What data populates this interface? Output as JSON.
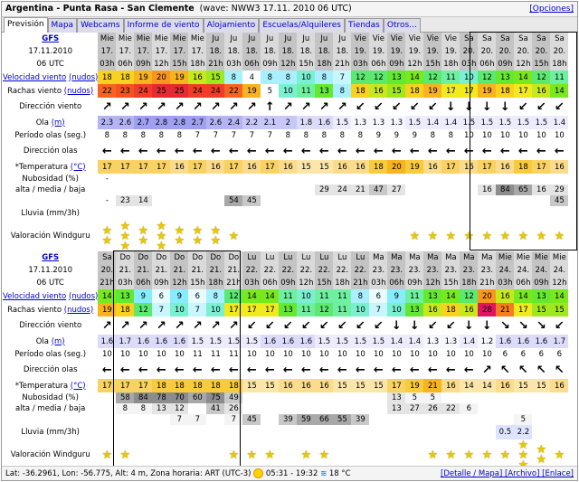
{
  "title": {
    "location": "Argentina - Punta Rasa - San Clemente",
    "meta": "(wave: NWW3 17.11. 2010 06 UTC)",
    "options": "[Opciones]"
  },
  "tabs": [
    "Previsión",
    "Mapa",
    "Webcams",
    "Informe de viento",
    "Alojamiento",
    "Escuelas/Alquileres",
    "Tiendas",
    "Otros..."
  ],
  "labels": {
    "model": "GFS",
    "date": "17.11.2010",
    "utc": "06 UTC",
    "wind": "Velocidad viento",
    "gust": "Rachas viento",
    "units_kn": "(nudos)",
    "wdir": "Dirección viento",
    "wave": "Ola",
    "wave_unit": "(m)",
    "period": "Período olas (seg.)",
    "wvdir": "Dirección olas",
    "temp": "*Temperatura",
    "temp_unit": "(°C)",
    "cloud1": "Nubosidad (%)",
    "cloud2": "alta / media / baja",
    "rain": "Lluvia (mm/3h)",
    "rating": "Valoración Windguru"
  },
  "p1": {
    "days": [
      "Mie",
      "Mie",
      "Mie",
      "Mie",
      "Mie",
      "Mie",
      "Ju",
      "Ju",
      "Ju",
      "Ju",
      "Ju",
      "Ju",
      "Ju",
      "Ju",
      "Vie",
      "Vie",
      "Vie",
      "Vie",
      "Vie",
      "Vie",
      "Sa",
      "Sa",
      "Sa",
      "Sa",
      "Sa",
      "Sa"
    ],
    "dates": [
      "17.",
      "17.",
      "17.",
      "17.",
      "17.",
      "17.",
      "18.",
      "18.",
      "18.",
      "18.",
      "18.",
      "18.",
      "18.",
      "18.",
      "19.",
      "19.",
      "19.",
      "19.",
      "19.",
      "19.",
      "20.",
      "20.",
      "20.",
      "20.",
      "20.",
      "20."
    ],
    "hours": [
      "03h",
      "06h",
      "09h",
      "12h",
      "15h",
      "18h",
      "21h",
      "03h",
      "06h",
      "09h",
      "12h",
      "15h",
      "18h",
      "21h",
      "03h",
      "06h",
      "09h",
      "12h",
      "15h",
      "18h",
      "03h",
      "06h",
      "09h",
      "12h",
      "15h",
      "18h"
    ],
    "wind": [
      "18",
      "18",
      "19",
      "20",
      "19",
      "16",
      "15",
      "8",
      "4",
      "8",
      "8",
      "10",
      "8",
      "7",
      "12",
      "12",
      "13",
      "14",
      "12",
      "11",
      "10",
      "12",
      "13",
      "14",
      "12",
      "11"
    ],
    "gust": [
      "22",
      "23",
      "24",
      "25",
      "25",
      "24",
      "24",
      "22",
      "19",
      "5",
      "10",
      "11",
      "13",
      "8",
      "18",
      "16",
      "15",
      "18",
      "19",
      "17",
      "17",
      "19",
      "18",
      "17",
      "16",
      "14"
    ],
    "wdir": [
      "↗",
      "↗",
      "↗",
      "↗",
      "↗",
      "↗",
      "↗",
      "↗",
      "↗",
      "↑",
      "↗",
      "↗",
      "↗",
      "↗",
      "↙",
      "↙",
      "↙",
      "↙",
      "↙",
      "↓",
      "↓",
      "↓",
      "↓",
      "↙",
      "↙",
      "↙"
    ],
    "wave": [
      "2.3",
      "2.6",
      "2.7",
      "2.8",
      "2.8",
      "2.7",
      "2.6",
      "2.4",
      "2.2",
      "2.1",
      "2",
      "1.8",
      "1.6",
      "1.5",
      "1.3",
      "1.3",
      "1.3",
      "1.5",
      "1.4",
      "1.4",
      "1.5",
      "1.5",
      "1.5",
      "1.5",
      "1.5",
      "1.4"
    ],
    "period": [
      "8",
      "8",
      "8",
      "8",
      "8",
      "7",
      "7",
      "7",
      "7",
      "7",
      "8",
      "8",
      "8",
      "8",
      "8",
      "9",
      "9",
      "9",
      "8",
      "8",
      "10",
      "10",
      "10",
      "10",
      "10",
      "10"
    ],
    "wvdir": [
      "←",
      "←",
      "←",
      "←",
      "←",
      "←",
      "←",
      "←",
      "←",
      "←",
      "←",
      "←",
      "←",
      "←",
      "←",
      "←",
      "←",
      "←",
      "←",
      "←",
      "←",
      "←",
      "←",
      "←",
      "←",
      "←"
    ],
    "temp": [
      "17",
      "17",
      "17",
      "17",
      "16",
      "17",
      "16",
      "17",
      "16",
      "17",
      "16",
      "15",
      "15",
      "16",
      "16",
      "18",
      "20",
      "19",
      "16",
      "17",
      "16",
      "17",
      "16",
      "18",
      "17",
      "16"
    ],
    "cloud_high": [
      "-",
      "",
      "",
      "",
      "",
      "",
      "",
      "",
      "",
      "",
      "",
      "",
      "",
      "",
      "",
      "",
      "",
      "",
      "",
      "",
      "",
      "",
      "",
      "",
      "",
      ""
    ],
    "cloud_mid": [
      "",
      "",
      "",
      "",
      "",
      "",
      "",
      "",
      "",
      "",
      "",
      "",
      "29",
      "24",
      "21",
      "47",
      "27",
      "",
      "",
      "",
      "",
      "16",
      "84",
      "65",
      "16",
      "29"
    ],
    "cloud_low": [
      "-",
      "23",
      "14",
      "",
      "",
      "",
      "",
      "54",
      "45",
      "",
      "",
      "",
      "",
      "",
      "",
      "",
      "",
      "",
      "",
      "",
      "",
      "",
      "",
      "",
      "",
      "45"
    ],
    "rating": [
      2,
      3,
      2,
      3,
      2,
      2,
      2,
      1,
      0,
      0,
      0,
      0,
      0,
      0,
      0,
      0,
      0,
      1,
      1,
      1,
      1,
      1,
      1,
      1,
      1,
      1
    ]
  },
  "p2": {
    "days": [
      "Sa",
      "Do",
      "Do",
      "Do",
      "Do",
      "Do",
      "Do",
      "Do",
      "Lu",
      "Lu",
      "Lu",
      "Lu",
      "Lu",
      "Lu",
      "Lu",
      "Ma",
      "Ma",
      "Ma",
      "Ma",
      "Ma",
      "Ma",
      "Ma",
      "Mie",
      "Mie",
      "Mie",
      "Mie"
    ],
    "dates": [
      "20.",
      "21.",
      "21.",
      "21.",
      "21.",
      "21.",
      "21.",
      "21.",
      "22.",
      "22.",
      "22.",
      "22.",
      "22.",
      "22.",
      "22.",
      "23.",
      "23.",
      "23.",
      "23.",
      "23.",
      "23.",
      "23.",
      "24.",
      "24.",
      "24.",
      "24."
    ],
    "hours": [
      "21h",
      "03h",
      "06h",
      "09h",
      "12h",
      "15h",
      "18h",
      "21h",
      "03h",
      "06h",
      "09h",
      "12h",
      "15h",
      "18h",
      "21h",
      "03h",
      "06h",
      "09h",
      "12h",
      "15h",
      "18h",
      "21h",
      "03h",
      "06h",
      "09h",
      "12h"
    ],
    "wind": [
      "14",
      "13",
      "9",
      "6",
      "9",
      "6",
      "8",
      "12",
      "14",
      "14",
      "11",
      "10",
      "11",
      "11",
      "8",
      "6",
      "9",
      "11",
      "13",
      "14",
      "12",
      "20",
      "16",
      "14",
      "13",
      "14"
    ],
    "gust": [
      "19",
      "18",
      "12",
      "7",
      "10",
      "7",
      "10",
      "17",
      "17",
      "17",
      "13",
      "11",
      "12",
      "11",
      "10",
      "7",
      "10",
      "13",
      "16",
      "18",
      "16",
      "28",
      "21",
      "17",
      "15",
      "15"
    ],
    "wdir": [
      "↗",
      "↗",
      "↗",
      "↗",
      "↗",
      "↗",
      "↗",
      "↗",
      "↙",
      "↙",
      "↙",
      "↙",
      "↙",
      "↙",
      "↙",
      "↙",
      "↓",
      "↓",
      "↙",
      "↙",
      "↓",
      "↓",
      "↘",
      "↘",
      "↘",
      "↙"
    ],
    "wave": [
      "1.6",
      "1.7",
      "1.6",
      "1.6",
      "1.6",
      "1.5",
      "1.5",
      "1.5",
      "1.5",
      "1.6",
      "1.6",
      "1.6",
      "1.5",
      "1.5",
      "1.5",
      "1.5",
      "1.4",
      "1.4",
      "1.3",
      "1.3",
      "1.4",
      "1.2",
      "1.6",
      "1.6",
      "1.6",
      "1.7"
    ],
    "period": [
      "10",
      "10",
      "10",
      "10",
      "10",
      "11",
      "11",
      "11",
      "10",
      "10",
      "10",
      "10",
      "10",
      "10",
      "10",
      "10",
      "10",
      "10",
      "10",
      "10",
      "10",
      "10",
      "6",
      "6",
      "6",
      "6"
    ],
    "wvdir": [
      "←",
      "←",
      "←",
      "←",
      "←",
      "←",
      "←",
      "←",
      "←",
      "←",
      "←",
      "←",
      "←",
      "←",
      "←",
      "←",
      "←",
      "←",
      "←",
      "←",
      "←",
      "↗",
      "↖",
      "↖",
      "↖",
      "↖"
    ],
    "temp": [
      "17",
      "17",
      "17",
      "18",
      "18",
      "18",
      "18",
      "18",
      "15",
      "15",
      "16",
      "16",
      "16",
      "15",
      "15",
      "15",
      "17",
      "19",
      "21",
      "16",
      "14",
      "14",
      "16",
      "15",
      "15",
      "16"
    ],
    "cloud_high": [
      "",
      "58",
      "84",
      "78",
      "70",
      "60",
      "75",
      "49",
      "",
      "",
      "",
      "",
      "",
      "",
      "",
      "",
      "13",
      "5",
      "5",
      "",
      "",
      "",
      "",
      "",
      "",
      ""
    ],
    "cloud_mid": [
      "",
      "8",
      "8",
      "13",
      "12",
      "",
      "41",
      "26",
      "",
      "",
      "",
      "",
      "",
      "",
      "",
      "",
      "13",
      "27",
      "26",
      "22",
      "6",
      "",
      "",
      "",
      "",
      ""
    ],
    "cloud_low": [
      "",
      "",
      "",
      "",
      "7",
      "7",
      "",
      "7",
      "45",
      "",
      "39",
      "59",
      "66",
      "55",
      "39",
      "",
      "",
      "",
      "",
      "",
      "",
      "",
      "",
      "5",
      "",
      ""
    ],
    "rain": [
      "",
      "",
      "",
      "",
      "",
      "",
      "",
      "",
      "",
      "",
      "",
      "",
      "",
      "",
      "",
      "",
      "",
      "",
      "",
      "",
      "",
      "",
      "0.5",
      "2.2",
      "",
      ""
    ],
    "rating": [
      1,
      1,
      0,
      0,
      0,
      0,
      0,
      1,
      1,
      1,
      0,
      1,
      1,
      0,
      0,
      0,
      0,
      0,
      1,
      1,
      1,
      1,
      1,
      3,
      2,
      1
    ]
  },
  "footer": {
    "text": "Lat: -36.2961, Lon: -56.775, Alt: 4 m, Zona horaria: ART (UTC-3)",
    "sun": "05:31 - 19:32",
    "sea": "18 °C",
    "links": "[Detalle / Mapa] [Archivo] [Enlace]"
  },
  "colors": {
    "wind": {
      "4": "#ffffff",
      "5": "#ffffff",
      "6": "#e8fcff",
      "7": "#c8f6ff",
      "8": "#a8f0ff",
      "9": "#88ecff",
      "10": "#7af0d0",
      "11": "#6ff0a0",
      "12": "#5de870",
      "13": "#64e832",
      "14": "#7ae81e",
      "15": "#a0e81e",
      "16": "#c8e81e",
      "17": "#f0ea1e",
      "18": "#f8d21e",
      "19": "#f8b41e",
      "20": "#f8961e",
      "21": "#f87c1e",
      "22": "#f8641e",
      "23": "#f8501e",
      "24": "#f03c28",
      "25": "#e82832",
      "28": "#e01460"
    }
  }
}
